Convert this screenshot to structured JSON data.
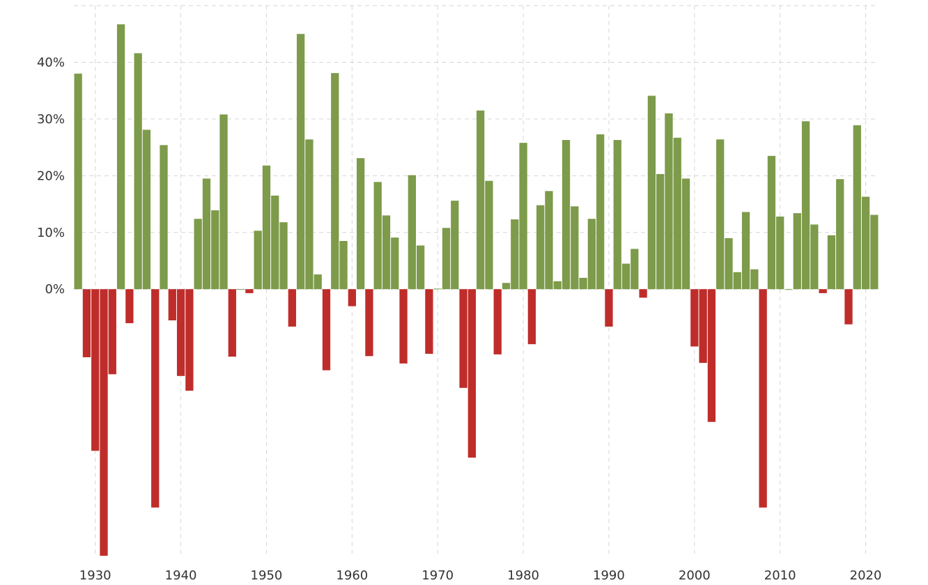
{
  "chart_data": {
    "type": "bar",
    "title": "",
    "xlabel": "",
    "ylabel": "",
    "x_ticks": [
      "1930",
      "1940",
      "1950",
      "1960",
      "1970",
      "1980",
      "1990",
      "2000",
      "2010",
      "2020"
    ],
    "y_ticks": [
      "0%",
      "10%",
      "20%",
      "30%",
      "40%"
    ],
    "ylim": [
      -47,
      50
    ],
    "xlim": [
      1927.5,
      2021.5
    ],
    "grid": true,
    "colors": {
      "positive": "#7d9b4a",
      "negative": "#bf2d2a",
      "grid": "#d6d6d6",
      "axis_text": "#333333"
    },
    "categories": [
      1928,
      1929,
      1930,
      1931,
      1932,
      1933,
      1934,
      1935,
      1936,
      1937,
      1938,
      1939,
      1940,
      1941,
      1942,
      1943,
      1944,
      1945,
      1946,
      1947,
      1948,
      1949,
      1950,
      1951,
      1952,
      1953,
      1954,
      1955,
      1956,
      1957,
      1958,
      1959,
      1960,
      1961,
      1962,
      1963,
      1964,
      1965,
      1966,
      1967,
      1968,
      1969,
      1970,
      1971,
      1972,
      1973,
      1974,
      1975,
      1976,
      1977,
      1978,
      1979,
      1980,
      1981,
      1982,
      1983,
      1984,
      1985,
      1986,
      1987,
      1988,
      1989,
      1990,
      1991,
      1992,
      1993,
      1994,
      1995,
      1996,
      1997,
      1998,
      1999,
      2000,
      2001,
      2002,
      2003,
      2004,
      2005,
      2006,
      2007,
      2008,
      2009,
      2010,
      2011,
      2012,
      2013,
      2014,
      2015,
      2016,
      2017,
      2018,
      2019,
      2020,
      2021
    ],
    "values": [
      38.0,
      -12.0,
      -28.5,
      -47.0,
      -15.0,
      46.7,
      -6.0,
      41.6,
      28.1,
      -38.5,
      25.4,
      -5.5,
      -15.3,
      -17.9,
      12.4,
      19.5,
      13.9,
      30.8,
      -11.9,
      0.0,
      -0.7,
      10.3,
      21.8,
      16.5,
      11.8,
      -6.6,
      45.0,
      26.4,
      2.6,
      -14.3,
      38.1,
      8.5,
      -3.0,
      23.1,
      -11.8,
      18.9,
      13.0,
      9.1,
      -13.1,
      20.1,
      7.7,
      -11.4,
      0.1,
      10.8,
      15.6,
      -17.4,
      -29.7,
      31.5,
      19.1,
      -11.5,
      1.1,
      12.3,
      25.8,
      -9.7,
      14.8,
      17.3,
      1.4,
      26.3,
      14.6,
      2.0,
      12.4,
      27.3,
      -6.6,
      26.3,
      4.5,
      7.1,
      -1.5,
      34.1,
      20.3,
      31.0,
      26.7,
      19.5,
      -10.1,
      -13.0,
      -23.4,
      26.4,
      9.0,
      3.0,
      13.6,
      3.5,
      -38.5,
      23.5,
      12.8,
      0.0,
      13.4,
      29.6,
      11.4,
      -0.7,
      9.5,
      19.4,
      -6.2,
      28.9,
      16.3,
      13.1
    ]
  }
}
